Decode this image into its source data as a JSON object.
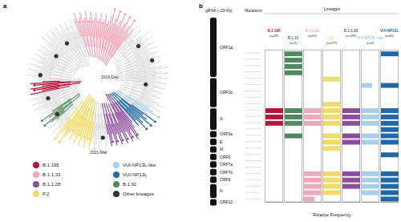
{
  "panel_a": {
    "label": "a",
    "annotations": [
      "2019-Dec",
      "2021-Mar"
    ],
    "legend": [
      {
        "name": "B.1.195",
        "color": "#b5173b"
      },
      {
        "name": "B.1.1.33",
        "color": "#f2a7bb"
      },
      {
        "name": "B.1.1.28",
        "color": "#8e4c9e"
      },
      {
        "name": "P.2",
        "color": "#f0dc6a"
      },
      {
        "name": "VUI-NP13L-like",
        "color": "#a9cfe8"
      },
      {
        "name": "VUI-NP13L",
        "color": "#1f69a8"
      },
      {
        "name": "B.1.91",
        "color": "#4f8a5f"
      },
      {
        "name": "Other lineages",
        "color": "#333333"
      }
    ]
  },
  "panel_b": {
    "label": "b",
    "genome_title": "gRNA (~29 Kb)",
    "mutations_title": "Mutations",
    "lineages_title": "Lineages",
    "genes": [
      "ORF1a",
      "ORF1b",
      "S",
      "ORF3a",
      "E",
      "M",
      "ORF6",
      "ORF7a",
      "ORF7b",
      "ORF8",
      "N",
      "ORF10"
    ]
  },
  "chart_data": {
    "type": "bar",
    "orientation": "horizontal",
    "xlabel": "Relative Frequency",
    "xlim": [
      0,
      1
    ],
    "tick_labels": false,
    "categories": [
      null,
      null,
      null,
      null,
      null,
      null,
      null,
      null,
      null,
      null,
      null,
      null,
      null,
      null,
      null,
      null,
      null,
      null,
      null,
      null,
      null,
      null,
      null,
      null
    ],
    "series": [
      {
        "name": "B.1.195",
        "n_label": "(n=48)",
        "color": "#b5173b",
        "values": [
          0,
          0,
          0,
          0,
          0,
          0,
          0,
          0,
          0,
          1,
          1,
          1,
          0,
          0,
          0,
          0,
          0,
          0,
          0,
          0,
          0,
          0,
          0,
          0
        ]
      },
      {
        "name": "B.1.91",
        "n_label": "(n=4)",
        "color": "#4f8a5f",
        "values": [
          1,
          1,
          1,
          1,
          0,
          0,
          0,
          0,
          0,
          1,
          1,
          1,
          0,
          1,
          0,
          0,
          0,
          0,
          0,
          0,
          0,
          0,
          0,
          0
        ]
      },
      {
        "name": "B.1.1.33",
        "n_label": "(n=60)",
        "color": "#f2a7bb",
        "values": [
          0,
          0,
          0,
          0,
          0,
          0,
          0,
          0,
          0,
          1,
          1,
          1,
          0,
          0,
          0,
          0,
          0,
          0,
          0,
          1,
          1,
          1,
          1,
          0.6
        ]
      },
      {
        "name": "P.2",
        "n_label": "(n=479)",
        "color": "#f0dc6a",
        "values": [
          0,
          0,
          0,
          0,
          1,
          0,
          0,
          0,
          1,
          1,
          1,
          1,
          0,
          1,
          1,
          1,
          0,
          0,
          0,
          1,
          1,
          1,
          1,
          0
        ]
      },
      {
        "name": "B.1.1.28",
        "n_label": "(n=489)",
        "color": "#8e4c9e",
        "values": [
          0,
          0,
          0,
          0,
          0,
          0,
          0,
          0,
          0,
          1,
          1,
          1,
          0,
          1,
          1,
          0,
          0,
          0,
          0,
          1,
          1,
          1,
          0,
          0
        ]
      },
      {
        "name": "VUI-NP13L-like",
        "n_label": "(n=8)",
        "color": "#a9cfe8",
        "values": [
          0,
          0,
          0,
          0,
          0,
          0.6,
          0,
          0,
          0,
          1,
          1,
          1,
          0,
          1,
          1,
          0,
          0,
          0,
          0,
          1,
          1,
          1,
          1,
          0
        ]
      },
      {
        "name": "VUI-NP13L",
        "n_label": "(n=80)",
        "color": "#1f69a8",
        "values": [
          1,
          0,
          0,
          0,
          0,
          1,
          0,
          0,
          0,
          1,
          1,
          1,
          1,
          1,
          1,
          0,
          1,
          0,
          0,
          1,
          1,
          1,
          1,
          1
        ]
      }
    ]
  }
}
